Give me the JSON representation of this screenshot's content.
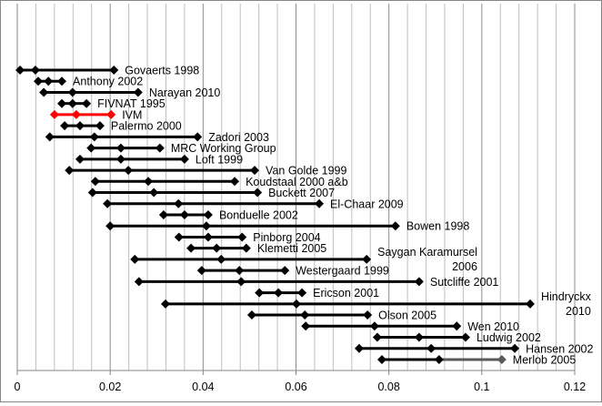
{
  "chart_data": {
    "type": "range",
    "title": "",
    "xlabel": "",
    "ylabel": "",
    "xlim": [
      0,
      0.12
    ],
    "x_ticks": [
      "0",
      "0.02",
      "0.04",
      "0.06",
      "0.08",
      "0.1",
      "0.12"
    ],
    "x_tick_values": [
      0,
      0.02,
      0.04,
      0.06,
      0.08,
      0.1,
      0.12
    ],
    "minor_grid_step": 0.004,
    "grid": true,
    "colors": {
      "default": "#000000",
      "highlight": "#ff0000",
      "merlob_upper": "#595959",
      "grid": "#bfbfbf"
    },
    "series": [
      {
        "name": "Govaerts 1998",
        "lines": [
          "Govaerts 1998"
        ],
        "low": 0.0006,
        "mid": 0.0039,
        "high": 0.0208
      },
      {
        "name": "Anthony 2002",
        "lines": [
          "Anthony 2002"
        ],
        "low": 0.0045,
        "mid": 0.0067,
        "high": 0.0096
      },
      {
        "name": "Narayan 2010",
        "lines": [
          "Narayan 2010"
        ],
        "low": 0.0057,
        "mid": 0.0119,
        "high": 0.026
      },
      {
        "name": "FIVNAT 1995",
        "lines": [
          "FIVNAT 1995"
        ],
        "low": 0.0096,
        "mid": 0.0119,
        "high": 0.0149
      },
      {
        "name": "IVM",
        "lines": [
          "IVM"
        ],
        "low": 0.008,
        "mid": 0.0127,
        "high": 0.0202,
        "highlight": true
      },
      {
        "name": "Palermo 2000",
        "lines": [
          "Palermo 2000"
        ],
        "low": 0.0102,
        "mid": 0.0135,
        "high": 0.0178
      },
      {
        "name": "Zadori 2003",
        "lines": [
          "Zadori 2003"
        ],
        "low": 0.007,
        "mid": 0.0166,
        "high": 0.0388
      },
      {
        "name": "MRC Working Group",
        "lines": [
          "MRC Working Group"
        ],
        "low": 0.0159,
        "mid": 0.0223,
        "high": 0.0307
      },
      {
        "name": "Loft 1999",
        "lines": [
          "Loft 1999"
        ],
        "low": 0.0135,
        "mid": 0.0223,
        "high": 0.036
      },
      {
        "name": "Van Golde 1999",
        "lines": [
          "Van Golde 1999"
        ],
        "low": 0.0112,
        "mid": 0.0239,
        "high": 0.0511
      },
      {
        "name": "Koudstaal 2000 a&b",
        "lines": [
          "Koudstaal 2000 a&b"
        ],
        "low": 0.0168,
        "mid": 0.0282,
        "high": 0.0468
      },
      {
        "name": "Buckett 2007",
        "lines": [
          "Buckett 2007"
        ],
        "low": 0.0162,
        "mid": 0.0294,
        "high": 0.0517
      },
      {
        "name": "El-Chaar 2009",
        "lines": [
          "El-Chaar 2009"
        ],
        "low": 0.0194,
        "mid": 0.0347,
        "high": 0.065
      },
      {
        "name": "Bonduelle 2002",
        "lines": [
          "Bonduelle 2002"
        ],
        "low": 0.0315,
        "mid": 0.036,
        "high": 0.0411
      },
      {
        "name": "Bowen 1998",
        "lines": [
          "Bowen 1998"
        ],
        "low": 0.02,
        "mid": 0.0407,
        "high": 0.0814
      },
      {
        "name": "Pinborg 2004",
        "lines": [
          "Pinborg 2004"
        ],
        "low": 0.0348,
        "mid": 0.0411,
        "high": 0.0484
      },
      {
        "name": "Klemetti 2005",
        "lines": [
          "Klemetti 2005"
        ],
        "low": 0.0374,
        "mid": 0.0429,
        "high": 0.0493
      },
      {
        "name": "Saygan Karamursel 2006",
        "lines": [
          "Saygan Karamursel",
          "2006"
        ],
        "low": 0.0253,
        "mid": 0.0439,
        "high": 0.0752
      },
      {
        "name": "Westergaard 1999",
        "lines": [
          "Westergaard 1999"
        ],
        "low": 0.0397,
        "mid": 0.0478,
        "high": 0.0576
      },
      {
        "name": "Sutcliffe 2001",
        "lines": [
          "Sutcliffe 2001"
        ],
        "low": 0.0262,
        "mid": 0.0482,
        "high": 0.0865
      },
      {
        "name": "Ericson 2001",
        "lines": [
          "Ericson 2001"
        ],
        "low": 0.0521,
        "mid": 0.0562,
        "high": 0.0613
      },
      {
        "name": "Hindryckx 2010",
        "lines": [
          "Hindryckx",
          "2010"
        ],
        "low": 0.0319,
        "mid": 0.0601,
        "high": 0.1104
      },
      {
        "name": "Olson 2005",
        "lines": [
          "Olson 2005"
        ],
        "low": 0.0505,
        "mid": 0.0619,
        "high": 0.0754
      },
      {
        "name": "Wen 2010",
        "lines": [
          "Wen 2010"
        ],
        "low": 0.0621,
        "mid": 0.0769,
        "high": 0.0946
      },
      {
        "name": "Ludwig 2002",
        "lines": [
          "Ludwig 2002"
        ],
        "low": 0.0775,
        "mid": 0.0865,
        "high": 0.0965
      },
      {
        "name": "Hansen 2002",
        "lines": [
          "Hansen 2002"
        ],
        "low": 0.0736,
        "mid": 0.0891,
        "high": 0.1071
      },
      {
        "name": "Merlob 2005",
        "lines": [
          "Merlob 2005"
        ],
        "low": 0.0785,
        "mid": 0.0908,
        "high": 0.1043,
        "upper_gray": true
      }
    ]
  }
}
